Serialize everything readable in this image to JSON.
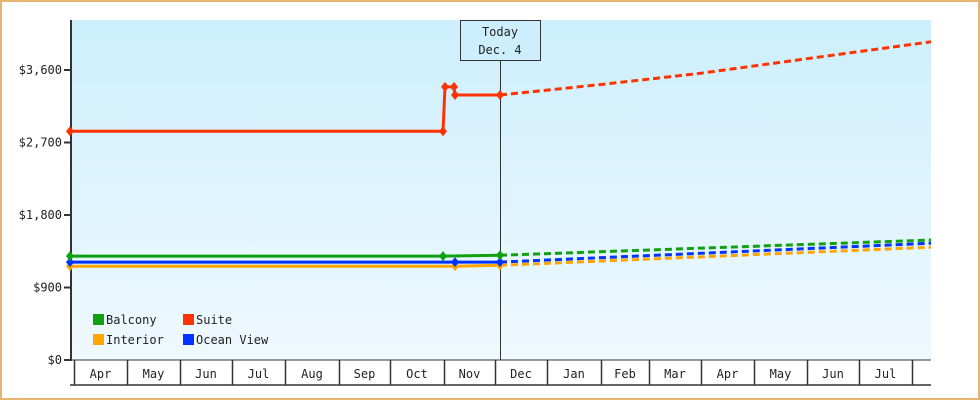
{
  "chart_data": {
    "type": "line",
    "title": "",
    "xlabel": "",
    "ylabel": "",
    "ylim": [
      0,
      4500
    ],
    "yticks": [
      0,
      900,
      1800,
      2700,
      3600
    ],
    "ytick_labels": [
      "$0",
      "$900",
      "$1,800",
      "$2,700",
      "$3,600"
    ],
    "x_months": [
      "Apr",
      "May",
      "Jun",
      "Jul",
      "Aug",
      "Sep",
      "Oct",
      "Nov",
      "Dec",
      "Jan",
      "Feb",
      "Mar",
      "Apr",
      "May",
      "Jun",
      "Jul",
      ""
    ],
    "today_marker": {
      "line1": "Today",
      "line2": "Dec. 4"
    },
    "grid": false,
    "legend_position": "bottom-left inside plot",
    "legend": [
      {
        "name": "Balcony",
        "color": "#10a010"
      },
      {
        "name": "Suite",
        "color": "#ff3300"
      },
      {
        "name": "Interior",
        "color": "#ffa500"
      },
      {
        "name": "Ocean View",
        "color": "#0033ff"
      }
    ],
    "series": [
      {
        "name": "Suite",
        "color": "#ff3300",
        "historical": [
          {
            "date": "Apr 1",
            "value": 2840
          },
          {
            "date": "Oct 28",
            "value": 2840
          },
          {
            "date": "Oct 29",
            "value": 3390
          },
          {
            "date": "Nov 3",
            "value": 3390
          },
          {
            "date": "Nov 4",
            "value": 3290
          },
          {
            "date": "Dec 4",
            "value": 3290
          }
        ],
        "projected": [
          {
            "date": "Dec 4",
            "value": 3290
          },
          {
            "date": "Feb",
            "value": 3420
          },
          {
            "date": "Apr",
            "value": 3560
          },
          {
            "date": "Jun",
            "value": 3740
          },
          {
            "date": "Aug",
            "value": 3950
          }
        ]
      },
      {
        "name": "Balcony",
        "color": "#10a010",
        "historical": [
          {
            "date": "Apr 1",
            "value": 1290
          },
          {
            "date": "Oct 28",
            "value": 1290
          },
          {
            "date": "Dec 4",
            "value": 1300
          }
        ],
        "projected": [
          {
            "date": "Dec 4",
            "value": 1300
          },
          {
            "date": "Aug",
            "value": 1490
          }
        ]
      },
      {
        "name": "Ocean View",
        "color": "#0033ff",
        "historical": [
          {
            "date": "Apr 1",
            "value": 1215
          },
          {
            "date": "Nov 4",
            "value": 1215
          },
          {
            "date": "Dec 4",
            "value": 1215
          }
        ],
        "projected": [
          {
            "date": "Dec 4",
            "value": 1215
          },
          {
            "date": "Aug",
            "value": 1450
          }
        ]
      },
      {
        "name": "Interior",
        "color": "#ffa500",
        "historical": [
          {
            "date": "Apr 1",
            "value": 1165
          },
          {
            "date": "Nov 4",
            "value": 1165
          },
          {
            "date": "Dec 4",
            "value": 1175
          }
        ],
        "projected": [
          {
            "date": "Dec 4",
            "value": 1175
          },
          {
            "date": "Aug",
            "value": 1400
          }
        ]
      }
    ]
  }
}
